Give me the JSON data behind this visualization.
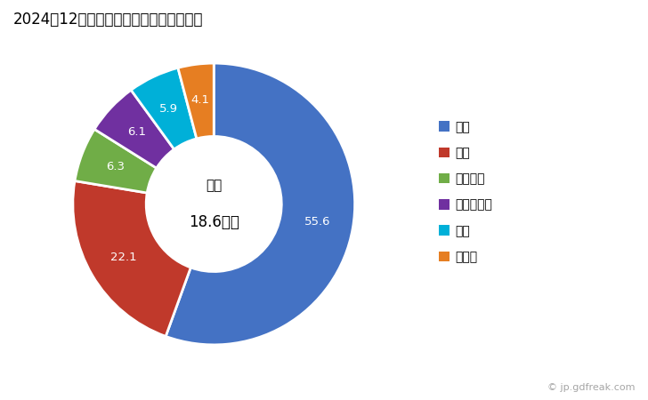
{
  "title": "2024年12月の輸出相手国のシェア（％）",
  "labels": [
    "中国",
    "米国",
    "モロッコ",
    "カンボジア",
    "台湾",
    "その他"
  ],
  "values": [
    55.6,
    22.1,
    6.3,
    6.1,
    5.9,
    4.1
  ],
  "colors": [
    "#4472C4",
    "#C0392B",
    "#70AD47",
    "#7030A0",
    "#00B0D8",
    "#E67E22"
  ],
  "center_label_top": "総額",
  "center_label_bottom": "18.6億円",
  "legend_labels": [
    "中国",
    "米国",
    "モロッコ",
    "カンボジア",
    "台湾",
    "その他"
  ],
  "watermark": "© jp.gdfreak.com",
  "background_color": "#FFFFFF",
  "label_colors": [
    "white",
    "white",
    "white",
    "white",
    "white",
    "white"
  ]
}
